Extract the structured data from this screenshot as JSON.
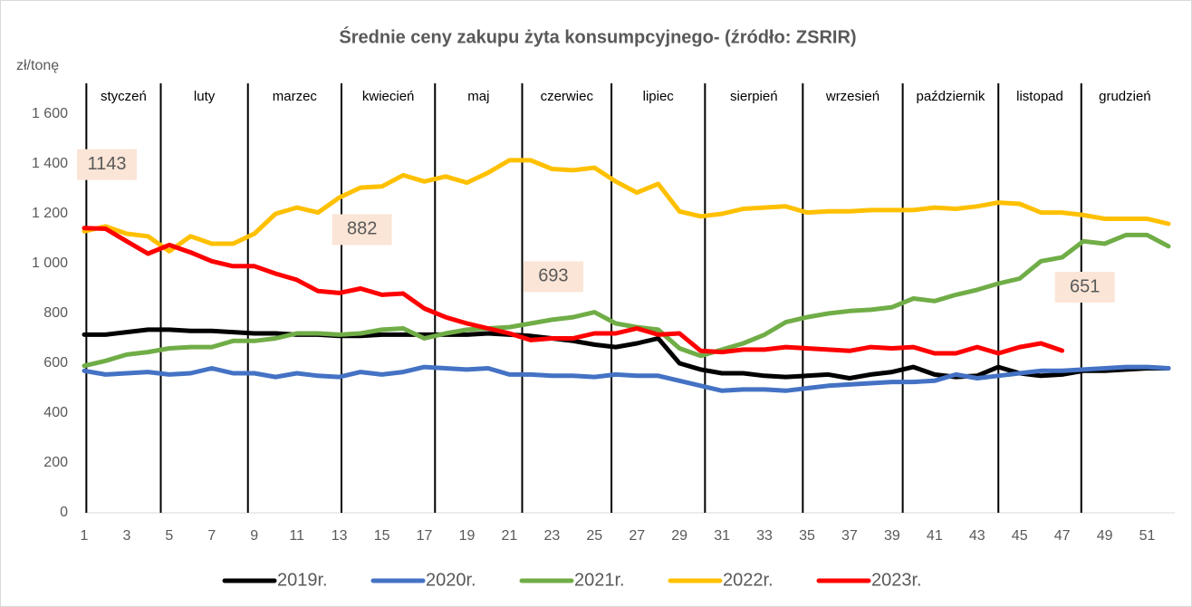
{
  "chart_data": {
    "type": "line",
    "title": "Średnie ceny zakupu żyta konsumpcyjnego- (źródło: ZSRIR)",
    "y_unit": "zł/tonę",
    "x": [
      1,
      2,
      3,
      4,
      5,
      6,
      7,
      8,
      9,
      10,
      11,
      12,
      13,
      14,
      15,
      16,
      17,
      18,
      19,
      20,
      21,
      22,
      23,
      24,
      25,
      26,
      27,
      28,
      29,
      30,
      31,
      32,
      33,
      34,
      35,
      36,
      37,
      38,
      39,
      40,
      41,
      42,
      43,
      44,
      45,
      46,
      47,
      48,
      49,
      50,
      51,
      52
    ],
    "xlim": [
      1,
      52
    ],
    "xticks": [
      1,
      3,
      5,
      7,
      9,
      11,
      13,
      15,
      17,
      19,
      21,
      23,
      25,
      27,
      29,
      31,
      33,
      35,
      37,
      39,
      41,
      43,
      45,
      47,
      49,
      51
    ],
    "ylim": [
      0,
      1600
    ],
    "yticks": [
      0,
      200,
      400,
      600,
      800,
      {
        "value": 1000,
        "label": "1 000"
      },
      {
        "value": 1200,
        "label": "1 200"
      },
      {
        "value": 1400,
        "label": "1 400"
      },
      {
        "value": 1600,
        "label": "1 600"
      }
    ],
    "months": [
      "styczeń",
      "luty",
      "marzec",
      "kwiecień",
      "maj",
      "czerwiec",
      "lipiec",
      "sierpień",
      "wrzesień",
      "październik",
      "listopad",
      "grudzień"
    ],
    "month_dividers": [
      1.1,
      4.6,
      8.7,
      13.1,
      17.5,
      21.6,
      25.8,
      30.2,
      34.8,
      39.5,
      44.0,
      47.9
    ],
    "series": [
      {
        "name": "2019r.",
        "color": "#000000",
        "values": [
          715,
          715,
          725,
          735,
          735,
          730,
          730,
          725,
          720,
          720,
          715,
          715,
          710,
          710,
          715,
          715,
          715,
          715,
          715,
          720,
          715,
          710,
          700,
          690,
          675,
          665,
          680,
          700,
          600,
          575,
          560,
          560,
          550,
          545,
          550,
          555,
          540,
          555,
          565,
          585,
          555,
          545,
          550,
          585,
          560,
          550,
          555,
          570,
          570,
          575,
          580,
          580
        ]
      },
      {
        "name": "2020r.",
        "color": "#4472c4",
        "values": [
          570,
          555,
          560,
          565,
          555,
          560,
          580,
          560,
          560,
          545,
          560,
          550,
          545,
          565,
          555,
          565,
          585,
          580,
          575,
          580,
          555,
          555,
          550,
          550,
          545,
          555,
          550,
          550,
          530,
          510,
          490,
          495,
          495,
          490,
          500,
          510,
          515,
          520,
          525,
          525,
          530,
          555,
          540,
          550,
          560,
          570,
          570,
          575,
          580,
          585,
          585,
          580
        ]
      },
      {
        "name": "2021r.",
        "color": "#70ad47",
        "values": [
          590,
          610,
          635,
          645,
          660,
          665,
          665,
          690,
          690,
          700,
          720,
          720,
          715,
          720,
          735,
          740,
          700,
          720,
          735,
          740,
          745,
          760,
          775,
          785,
          805,
          760,
          745,
          735,
          660,
          630,
          655,
          680,
          715,
          765,
          785,
          800,
          810,
          815,
          825,
          860,
          850,
          875,
          895,
          920,
          940,
          1010,
          1025,
          1090,
          1080,
          1115,
          1115,
          1070
        ]
      },
      {
        "name": "2022r.",
        "color": "#ffc000",
        "values": [
          1130,
          1150,
          1120,
          1110,
          1050,
          1110,
          1080,
          1080,
          1120,
          1200,
          1225,
          1205,
          1265,
          1305,
          1310,
          1355,
          1330,
          1350,
          1325,
          1365,
          1415,
          1415,
          1380,
          1375,
          1385,
          1330,
          1285,
          1320,
          1210,
          1190,
          1200,
          1220,
          1225,
          1230,
          1205,
          1210,
          1210,
          1215,
          1215,
          1215,
          1225,
          1220,
          1230,
          1245,
          1240,
          1205,
          1205,
          1195,
          1180,
          1180,
          1180,
          1160
        ]
      },
      {
        "name": "2023r.",
        "color": "#ff0000",
        "values": [
          1143,
          1140,
          1090,
          1040,
          1075,
          1045,
          1010,
          990,
          990,
          960,
          935,
          890,
          882,
          900,
          875,
          880,
          820,
          785,
          760,
          740,
          720,
          693,
          700,
          700,
          720,
          720,
          740,
          715,
          720,
          650,
          645,
          655,
          655,
          665,
          660,
          655,
          650,
          665,
          660,
          665,
          640,
          640,
          665,
          640,
          665,
          680,
          651,
          null,
          null,
          null,
          null,
          null
        ]
      }
    ],
    "annotations": [
      {
        "x": 1,
        "value": 1143
      },
      {
        "x": 13,
        "value": 882
      },
      {
        "x": 22,
        "value": 693
      },
      {
        "x": 47,
        "value": 651
      }
    ]
  }
}
